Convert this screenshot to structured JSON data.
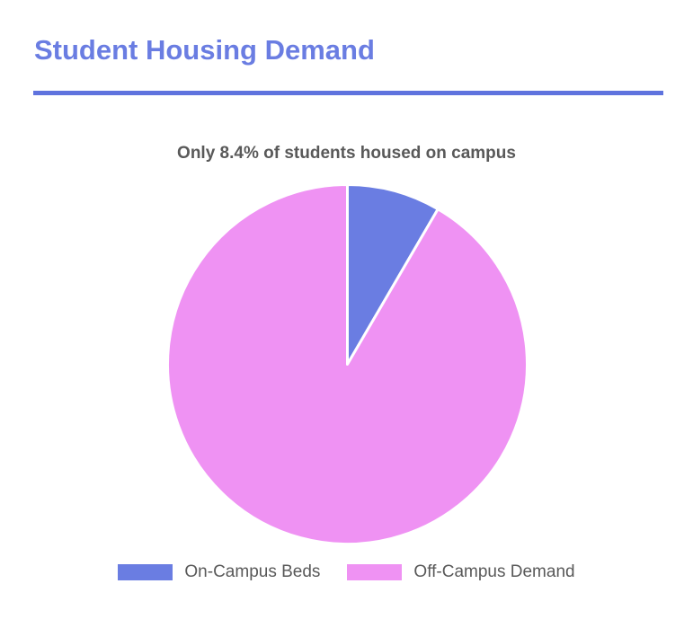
{
  "page": {
    "title": "Student Housing Demand"
  },
  "chart_data": {
    "type": "pie",
    "title": "Student Housing Demand",
    "subtitle": "Only 8.4% of students housed on campus",
    "slices": [
      {
        "label": "On-Campus Beds",
        "value": 8.4,
        "color": "#6A7DE2"
      },
      {
        "label": "Off-Campus Demand",
        "value": 91.6,
        "color": "#EF92F3"
      }
    ],
    "start_angle_deg": 0,
    "direction": "clockwise",
    "slice_border": {
      "color": "#ffffff",
      "width": 3
    },
    "legend_position": "bottom",
    "data_labels": "none"
  },
  "colors": {
    "accent_blue": "#6A7DE2",
    "divider_blue": "#5F73DE",
    "pink": "#EF92F3",
    "text_gray": "#595959",
    "background": "#ffffff"
  }
}
